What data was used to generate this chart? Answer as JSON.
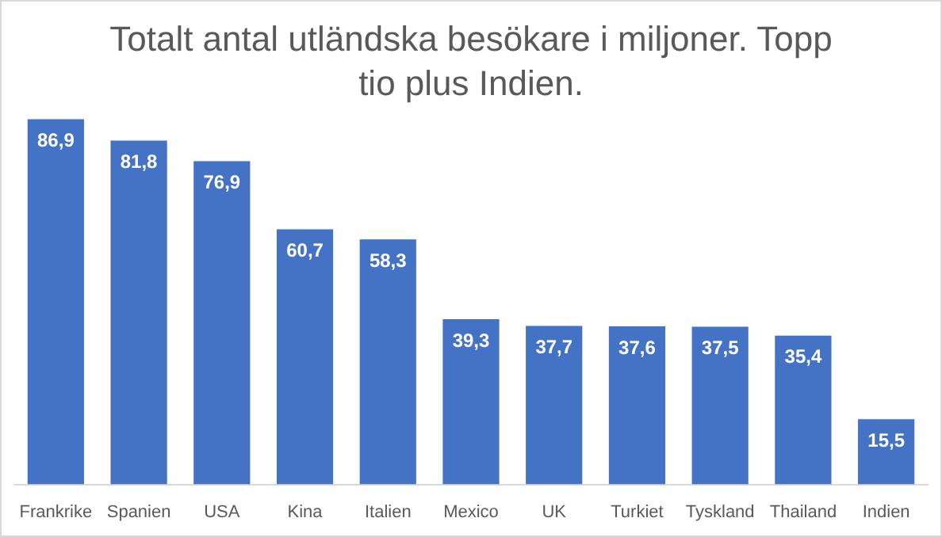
{
  "chart_data": {
    "type": "bar",
    "title": "Totalt antal utländska besökare i miljoner. Topp tio plus Indien.",
    "categories": [
      "Frankrike",
      "Spanien",
      "USA",
      "Kina",
      "Italien",
      "Mexico",
      "UK",
      "Turkiet",
      "Tyskland",
      "Thailand",
      "Indien"
    ],
    "values": [
      86.9,
      81.8,
      76.9,
      60.7,
      58.3,
      39.3,
      37.7,
      37.6,
      37.5,
      35.4,
      15.5
    ],
    "value_labels": [
      "86,9",
      "81,8",
      "76,9",
      "60,7",
      "58,3",
      "39,3",
      "37,7",
      "37,6",
      "37,5",
      "35,4",
      "15,5"
    ],
    "color": "#4472c4",
    "grid": false,
    "legend": false,
    "tick_labels": "x"
  }
}
